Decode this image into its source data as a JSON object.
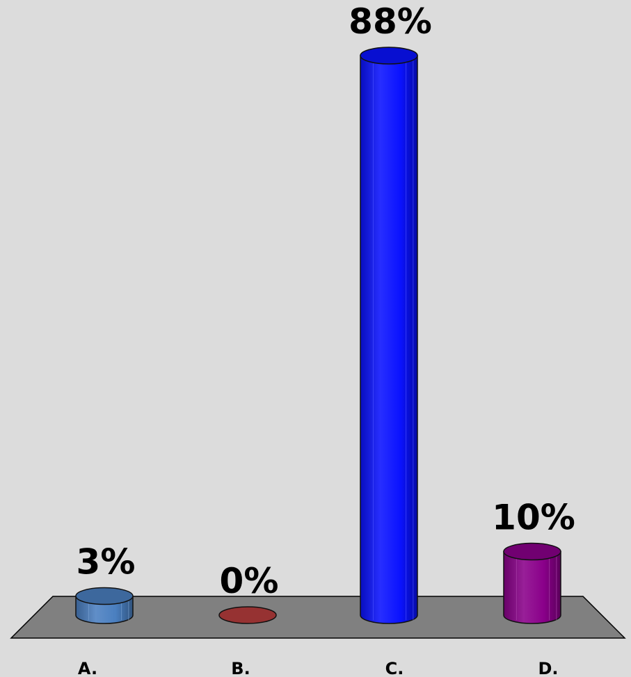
{
  "chart_data": {
    "type": "bar",
    "style": "3d-cylinder",
    "categories": [
      "A.",
      "B.",
      "C.",
      "D."
    ],
    "values": [
      3,
      0,
      88,
      10
    ],
    "data_labels": [
      "3%",
      "0%",
      "88%",
      "10%"
    ],
    "colors": [
      "#4a7fc0",
      "#963232",
      "#0a12ff",
      "#8a008a"
    ],
    "title": "",
    "xlabel": "",
    "ylabel": "",
    "ylim": [
      0,
      88
    ],
    "grid": false,
    "legend": "none",
    "floor_color": "#808080",
    "background": "#dcdcdc"
  }
}
